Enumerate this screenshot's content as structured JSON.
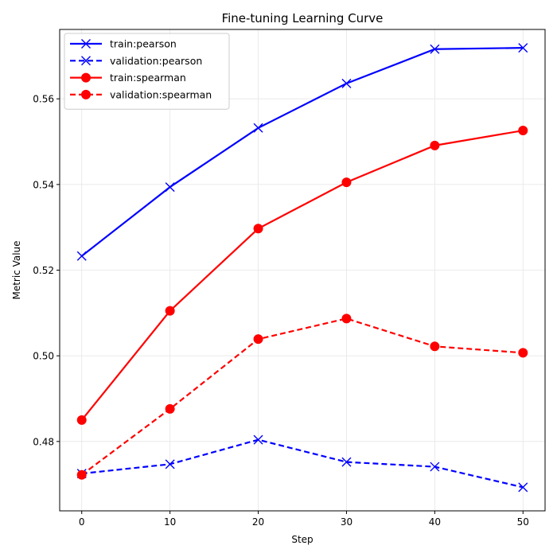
{
  "chart_data": {
    "type": "line",
    "title": "Fine-tuning Learning Curve",
    "xlabel": "Step",
    "ylabel": "Metric Value",
    "x": [
      0,
      10,
      20,
      30,
      40,
      50
    ],
    "xlim": [
      -2.5,
      52.5
    ],
    "ylim": [
      0.4638,
      0.5762
    ],
    "xticks": [
      0,
      10,
      20,
      30,
      40,
      50
    ],
    "yticks": [
      0.48,
      0.5,
      0.52,
      0.54,
      0.56
    ],
    "ytick_labels": [
      "0.48",
      "0.50",
      "0.52",
      "0.54",
      "0.56"
    ],
    "xtick_labels": [
      "0",
      "10",
      "20",
      "30",
      "40",
      "50"
    ],
    "grid": true,
    "legend_position": "top-left",
    "series": [
      {
        "name": "train:pearson",
        "color": "#0000ff",
        "linestyle": "solid",
        "marker": "x",
        "values": [
          0.5233,
          0.5394,
          0.5532,
          0.5636,
          0.5716,
          0.5719
        ]
      },
      {
        "name": "validation:pearson",
        "color": "#0000ff",
        "linestyle": "dashed",
        "marker": "x",
        "values": [
          0.4725,
          0.4747,
          0.4804,
          0.4752,
          0.4741,
          0.4693
        ]
      },
      {
        "name": "train:spearman",
        "color": "#ff0000",
        "linestyle": "solid",
        "marker": "circle",
        "values": [
          0.485,
          0.5105,
          0.5297,
          0.5405,
          0.5491,
          0.5526
        ]
      },
      {
        "name": "validation:spearman",
        "color": "#ff0000",
        "linestyle": "dashed",
        "marker": "circle",
        "values": [
          0.4722,
          0.4876,
          0.5039,
          0.5087,
          0.5022,
          0.5007
        ]
      }
    ]
  }
}
